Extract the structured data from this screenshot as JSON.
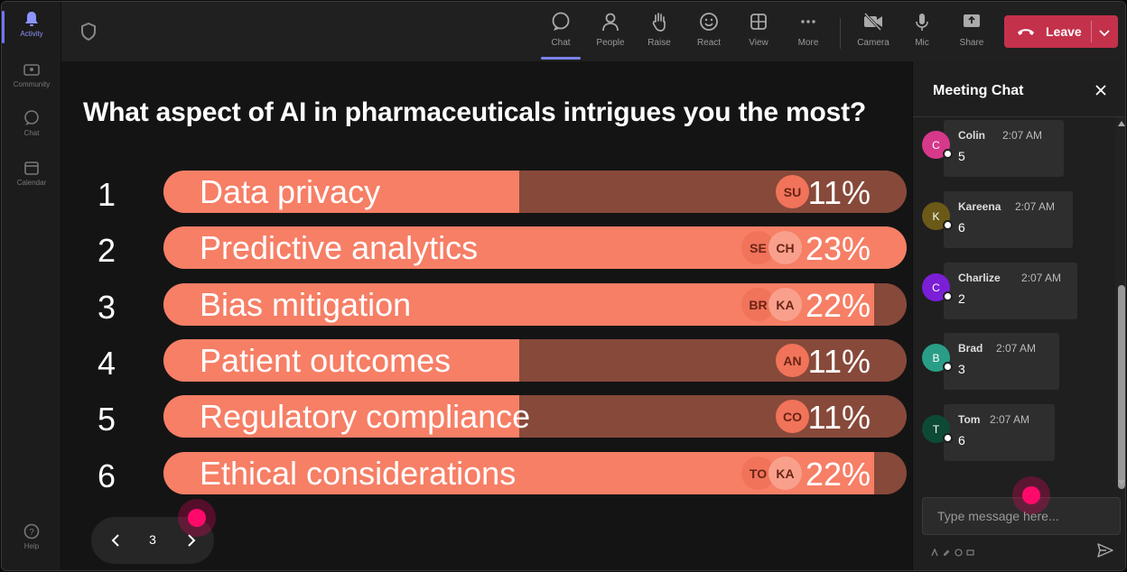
{
  "colors": {
    "accent": "#7b83eb",
    "leave": "#c4314b",
    "bar_fill": "#f67f66",
    "bar_track": "#87493a"
  },
  "rail": {
    "items": [
      {
        "label": "Activity",
        "icon": "bell-icon",
        "active": true
      },
      {
        "label": "Community",
        "icon": "community-icon"
      },
      {
        "label": "Chat",
        "icon": "chat-icon"
      },
      {
        "label": "Calendar",
        "icon": "calendar-icon"
      },
      {
        "label": "Help",
        "icon": "help-icon"
      }
    ]
  },
  "toolbar": {
    "buttons": [
      {
        "label": "Chat",
        "icon": "chat-icon",
        "active": true
      },
      {
        "label": "People",
        "icon": "people-icon"
      },
      {
        "label": "Raise",
        "icon": "hand-icon"
      },
      {
        "label": "React",
        "icon": "smiley-icon"
      },
      {
        "label": "View",
        "icon": "grid-icon"
      },
      {
        "label": "More",
        "icon": "more-icon"
      },
      {
        "label": "Camera",
        "icon": "camera-off-icon"
      },
      {
        "label": "Mic",
        "icon": "mic-icon"
      },
      {
        "label": "Share",
        "icon": "share-icon"
      }
    ],
    "leave_label": "Leave"
  },
  "poll": {
    "question": "What aspect of AI in pharmaceuticals intrigues you the most?",
    "options": [
      {
        "num": "1",
        "label": "Data privacy",
        "percent_label": "11%",
        "percent": 11,
        "avatars": [
          "SU"
        ]
      },
      {
        "num": "2",
        "label": "Predictive analytics",
        "percent_label": "23%",
        "percent": 23,
        "avatars": [
          "SE",
          "CH"
        ]
      },
      {
        "num": "3",
        "label": "Bias mitigation",
        "percent_label": "22%",
        "percent": 22,
        "avatars": [
          "BR",
          "KA"
        ]
      },
      {
        "num": "4",
        "label": "Patient outcomes",
        "percent_label": "11%",
        "percent": 11,
        "avatars": [
          "AN"
        ]
      },
      {
        "num": "5",
        "label": "Regulatory compliance",
        "percent_label": "11%",
        "percent": 11,
        "avatars": [
          "CO"
        ]
      },
      {
        "num": "6",
        "label": "Ethical considerations",
        "percent_label": "22%",
        "percent": 22,
        "avatars": [
          "TO",
          "KA"
        ]
      }
    ],
    "max_percent": 23,
    "page": "3"
  },
  "chat": {
    "title": "Meeting Chat",
    "messages": [
      {
        "initial": "C",
        "name": "Colin",
        "time": "2:07 AM",
        "text": "5",
        "color": "#d6388a"
      },
      {
        "initial": "K",
        "name": "Kareena",
        "time": "2:07 AM",
        "text": "6",
        "color": "#6b5a17"
      },
      {
        "initial": "C",
        "name": "Charlize",
        "time": "2:07 AM",
        "text": "2",
        "color": "#7a1fd6"
      },
      {
        "initial": "B",
        "name": "Brad",
        "time": "2:07 AM",
        "text": "3",
        "color": "#2a9d86"
      },
      {
        "initial": "T",
        "name": "Tom",
        "time": "2:07 AM",
        "text": "6",
        "color": "#0d4a36"
      }
    ],
    "input_placeholder": "Type message here..."
  }
}
